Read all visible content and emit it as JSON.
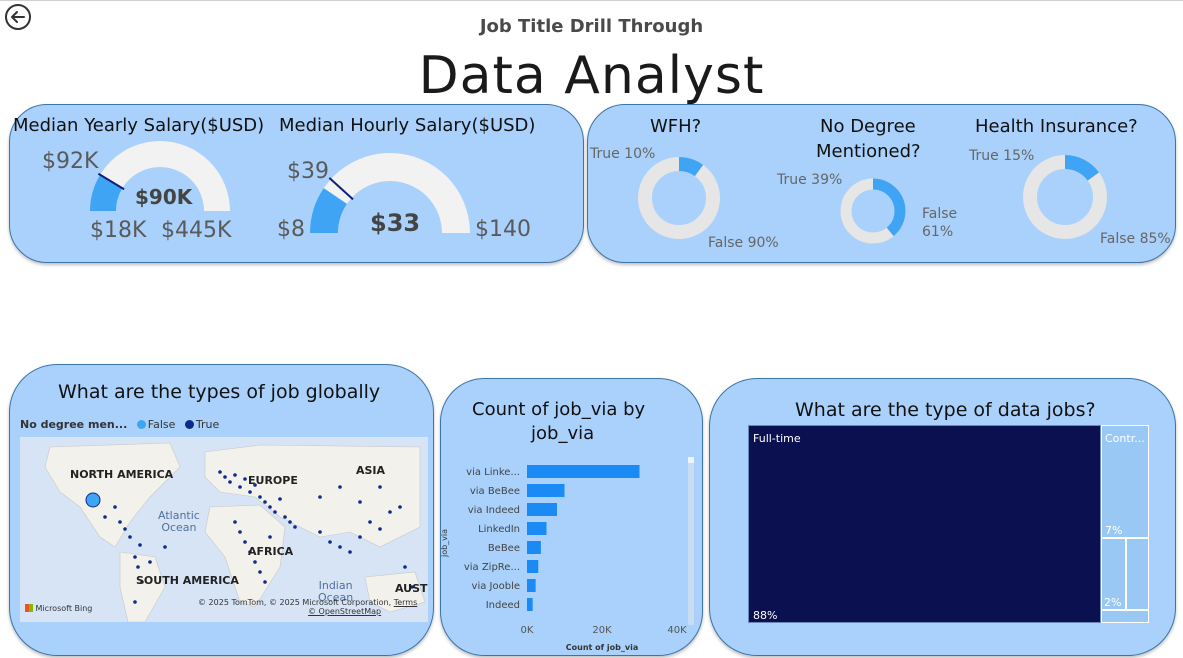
{
  "header": {
    "drill_title": "Job Title Drill Through",
    "main_title": "Data Analyst"
  },
  "salary": {
    "yearly": {
      "title": "Median Yearly Salary($USD)",
      "target_label": "$92K",
      "value_label": "$90K",
      "min_label": "$18K",
      "max_label": "$445K",
      "min": 18000,
      "max": 445000,
      "value": 90000,
      "target": 92000
    },
    "hourly": {
      "title": "Median Hourly Salary($USD)",
      "target_label": "$39",
      "value_label": "$33",
      "min_label": "$8",
      "max_label": "$140",
      "min": 8,
      "max": 140,
      "value": 33,
      "target": 39
    }
  },
  "donuts": [
    {
      "title": "WFH?",
      "title2": "",
      "true_label": "True 10%",
      "false_label": "False 90%",
      "true_pct": 10
    },
    {
      "title": "No Degree",
      "title2": "Mentioned?",
      "true_label": "True 39%",
      "false_label": "False",
      "false_label2": "61%",
      "true_pct": 39
    },
    {
      "title": "Health Insurance?",
      "title2": "",
      "true_label": "True 15%",
      "false_label": "False 85%",
      "true_pct": 15
    }
  ],
  "map": {
    "title": "What are the types of job globally",
    "legend_title": "No degree men...",
    "legend_false": "False",
    "legend_true": "True",
    "continents": {
      "na": "NORTH AMERICA",
      "eu": "EUROPE",
      "asia": "ASIA",
      "af": "AFRICA",
      "sa": "SOUTH AMERICA",
      "au": "AUSTR"
    },
    "oceans": {
      "atlantic1": "Atlantic",
      "atlantic2": "Ocean",
      "indian1": "Indian",
      "indian2": "Ocean"
    },
    "copyright": "© 2025 TomTom, © 2025 Microsoft Corporation,",
    "terms": "Terms",
    "osm": "© OpenStreetMap",
    "bing": "Microsoft Bing"
  },
  "job_via": {
    "title1": "Count of job_via by",
    "title2": "job_via",
    "xlabel": "Count of job_via",
    "ylabel": "job_via"
  },
  "chart_data": {
    "type": "bar",
    "orientation": "horizontal",
    "title": "Count of job_via by job_via",
    "xlabel": "Count of job_via",
    "ylabel": "job_via",
    "categories": [
      "via Linke...",
      "via BeBee",
      "via Indeed",
      "LinkedIn",
      "BeBee",
      "via ZipRe...",
      "via Jooble",
      "Indeed"
    ],
    "values": [
      30000,
      10000,
      8000,
      5200,
      3700,
      3000,
      2300,
      1500
    ],
    "xlim": [
      0,
      40000
    ],
    "xticks": [
      "0K",
      "20K",
      "40K"
    ],
    "grid": false
  },
  "treemap": {
    "title": "What are the type of data jobs?",
    "blocks": [
      {
        "label": "Full-time",
        "value_label": "88%",
        "pct": 88,
        "color": "#0b1150"
      },
      {
        "label": "Contr...",
        "value_label": "7%",
        "pct": 7,
        "color": "#9ac8f5"
      },
      {
        "label": "",
        "value_label": "2%",
        "pct": 2,
        "color": "#9ac8f5"
      }
    ]
  },
  "colors": {
    "card_bg": "#a9d1fb",
    "card_border": "#3b74a7",
    "gauge_fill": "#3fa4f3",
    "gauge_track": "#f2f2f2",
    "gauge_target": "#10207a",
    "donut_true": "#3fa4f3",
    "donut_false": "#e6e6e6",
    "bar": "#1a8af5",
    "map_false": "#3fa4f3",
    "map_true": "#0e2a8a"
  }
}
